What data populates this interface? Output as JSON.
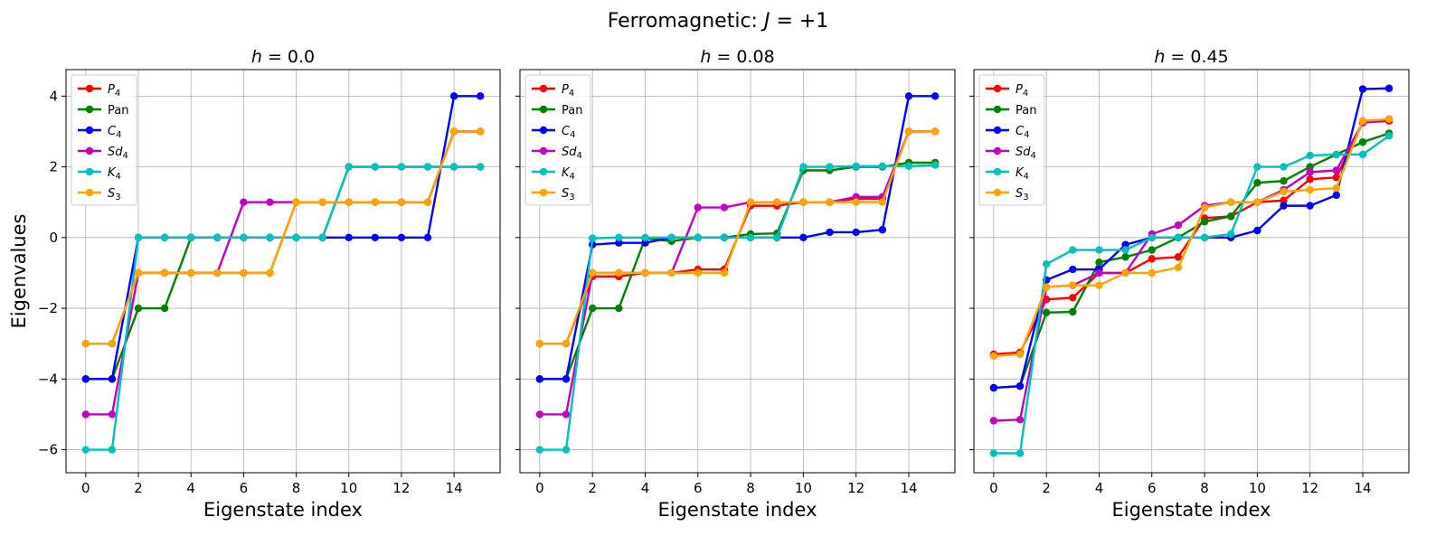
{
  "figure": {
    "suptitle_prefix": "Ferromagnetic: ",
    "suptitle_var": "J",
    "suptitle_suffix": " = +1"
  },
  "chart_data": [
    {
      "type": "line",
      "title_var": "h",
      "title_value": " = 0.0",
      "xlabel": "Eigenstate index",
      "ylabel": "Eigenvalues",
      "xlim": [
        -0.75,
        15.75
      ],
      "ylim": [
        -6.65,
        4.75
      ],
      "xticks": [
        0,
        2,
        4,
        6,
        8,
        10,
        12,
        14
      ],
      "yticks": [
        -6,
        -4,
        -2,
        0,
        2,
        4
      ],
      "grid": true,
      "legend": "top-left",
      "x": [
        0,
        1,
        2,
        3,
        4,
        5,
        6,
        7,
        8,
        9,
        10,
        11,
        12,
        13,
        14,
        15
      ],
      "series": [
        {
          "name": "P",
          "sub": "4",
          "color": "#ff0000",
          "values": [
            -3,
            -3,
            -1,
            -1,
            -1,
            -1,
            -1,
            -1,
            1,
            1,
            1,
            1,
            1,
            1,
            3,
            3
          ]
        },
        {
          "name": "Pan",
          "sub": "",
          "color": "#008000",
          "values": [
            -4,
            -4,
            -2,
            -2,
            0,
            0,
            0,
            0,
            0,
            0,
            2,
            2,
            2,
            2,
            2,
            2
          ]
        },
        {
          "name": "C",
          "sub": "4",
          "color": "#0000ff",
          "values": [
            -4,
            -4,
            0,
            0,
            0,
            0,
            0,
            0,
            0,
            0,
            0,
            0,
            0,
            0,
            4,
            4
          ]
        },
        {
          "name": "Sd",
          "sub": "4",
          "color": "#bf00bf",
          "values": [
            -5,
            -5,
            -1,
            -1,
            -1,
            -1,
            1,
            1,
            1,
            1,
            1,
            1,
            1,
            1,
            3,
            3
          ]
        },
        {
          "name": "K",
          "sub": "4",
          "color": "#00bfbf",
          "values": [
            -6,
            -6,
            0,
            0,
            0,
            0,
            0,
            0,
            0,
            0,
            2,
            2,
            2,
            2,
            2,
            2
          ]
        },
        {
          "name": "S",
          "sub": "3",
          "color": "#ffa500",
          "values": [
            -3,
            -3,
            -1,
            -1,
            -1,
            -1,
            -1,
            -1,
            1,
            1,
            1,
            1,
            1,
            1,
            3,
            3
          ]
        }
      ]
    },
    {
      "type": "line",
      "title_var": "h",
      "title_value": " = 0.08",
      "xlabel": "Eigenstate index",
      "ylabel": "",
      "xlim": [
        -0.75,
        15.75
      ],
      "ylim": [
        -6.65,
        4.75
      ],
      "xticks": [
        0,
        2,
        4,
        6,
        8,
        10,
        12,
        14
      ],
      "yticks": [
        -6,
        -4,
        -2,
        0,
        2,
        4
      ],
      "grid": true,
      "legend": "top-left",
      "x": [
        0,
        1,
        2,
        3,
        4,
        5,
        6,
        7,
        8,
        9,
        10,
        11,
        12,
        13,
        14,
        15
      ],
      "series": [
        {
          "name": "P",
          "sub": "4",
          "color": "#ff0000",
          "values": [
            -3,
            -3,
            -1.1,
            -1.1,
            -1,
            -1,
            -0.9,
            -0.9,
            0.9,
            0.9,
            1,
            1,
            1.1,
            1.1,
            3,
            3
          ]
        },
        {
          "name": "Pan",
          "sub": "",
          "color": "#008000",
          "values": [
            -4,
            -4,
            -2,
            -2,
            -0.02,
            -0.1,
            0,
            0,
            0.1,
            0.12,
            1.9,
            1.9,
            2,
            2,
            2.12,
            2.12
          ]
        },
        {
          "name": "C",
          "sub": "4",
          "color": "#0000ff",
          "values": [
            -4,
            -4,
            -0.2,
            -0.15,
            -0.15,
            0,
            0,
            0,
            0,
            0,
            0,
            0.15,
            0.15,
            0.22,
            4,
            4
          ]
        },
        {
          "name": "Sd",
          "sub": "4",
          "color": "#bf00bf",
          "values": [
            -5,
            -5,
            -1,
            -1,
            -1,
            -1,
            0.85,
            0.85,
            1,
            1,
            1,
            1,
            1.15,
            1.15,
            3,
            3
          ]
        },
        {
          "name": "K",
          "sub": "4",
          "color": "#00bfbf",
          "values": [
            -6,
            -6,
            -0.02,
            0,
            0,
            0,
            0,
            0,
            0,
            0,
            2,
            2,
            2.02,
            2.02,
            2.02,
            2.05
          ]
        },
        {
          "name": "S",
          "sub": "3",
          "color": "#ffa500",
          "values": [
            -3,
            -3,
            -1,
            -1,
            -1,
            -1,
            -1,
            -1,
            1,
            1,
            1,
            1,
            1,
            1,
            3,
            3
          ]
        }
      ]
    },
    {
      "type": "line",
      "title_var": "h",
      "title_value": " = 0.45",
      "xlabel": "Eigenstate index",
      "ylabel": "",
      "xlim": [
        -0.75,
        15.75
      ],
      "ylim": [
        -6.65,
        4.75
      ],
      "xticks": [
        0,
        2,
        4,
        6,
        8,
        10,
        12,
        14
      ],
      "yticks": [
        -6,
        -4,
        -2,
        0,
        2,
        4
      ],
      "grid": true,
      "legend": "top-left",
      "x": [
        0,
        1,
        2,
        3,
        4,
        5,
        6,
        7,
        8,
        9,
        10,
        11,
        12,
        13,
        14,
        15
      ],
      "series": [
        {
          "name": "P",
          "sub": "4",
          "color": "#ff0000",
          "values": [
            -3.3,
            -3.25,
            -1.75,
            -1.7,
            -1,
            -1,
            -0.6,
            -0.55,
            0.55,
            0.6,
            1,
            1.05,
            1.65,
            1.7,
            3.25,
            3.3
          ]
        },
        {
          "name": "Pan",
          "sub": "",
          "color": "#008000",
          "values": [
            -4.25,
            -4.2,
            -2.12,
            -2.1,
            -0.7,
            -0.55,
            -0.35,
            0,
            0.45,
            0.6,
            1.55,
            1.6,
            2,
            2.35,
            2.7,
            2.95
          ]
        },
        {
          "name": "C",
          "sub": "4",
          "color": "#0000ff",
          "values": [
            -4.25,
            -4.2,
            -1.2,
            -0.9,
            -0.9,
            -0.2,
            0,
            0,
            0,
            0,
            0.2,
            0.9,
            0.9,
            1.2,
            4.2,
            4.22
          ]
        },
        {
          "name": "Sd",
          "sub": "4",
          "color": "#bf00bf",
          "values": [
            -5.18,
            -5.15,
            -1.4,
            -1.35,
            -1,
            -1,
            0.1,
            0.35,
            0.9,
            1,
            1,
            1.35,
            1.85,
            1.9,
            3.25,
            3.35
          ]
        },
        {
          "name": "K",
          "sub": "4",
          "color": "#00bfbf",
          "values": [
            -6.1,
            -6.1,
            -0.75,
            -0.35,
            -0.35,
            -0.35,
            0,
            0,
            0,
            0.1,
            2,
            2,
            2.32,
            2.35,
            2.35,
            2.88
          ]
        },
        {
          "name": "S",
          "sub": "3",
          "color": "#ffa500",
          "values": [
            -3.35,
            -3.3,
            -1.4,
            -1.35,
            -1.35,
            -1,
            -1,
            -0.85,
            0.85,
            1,
            1,
            1.3,
            1.35,
            1.4,
            3.3,
            3.35
          ]
        }
      ]
    }
  ]
}
